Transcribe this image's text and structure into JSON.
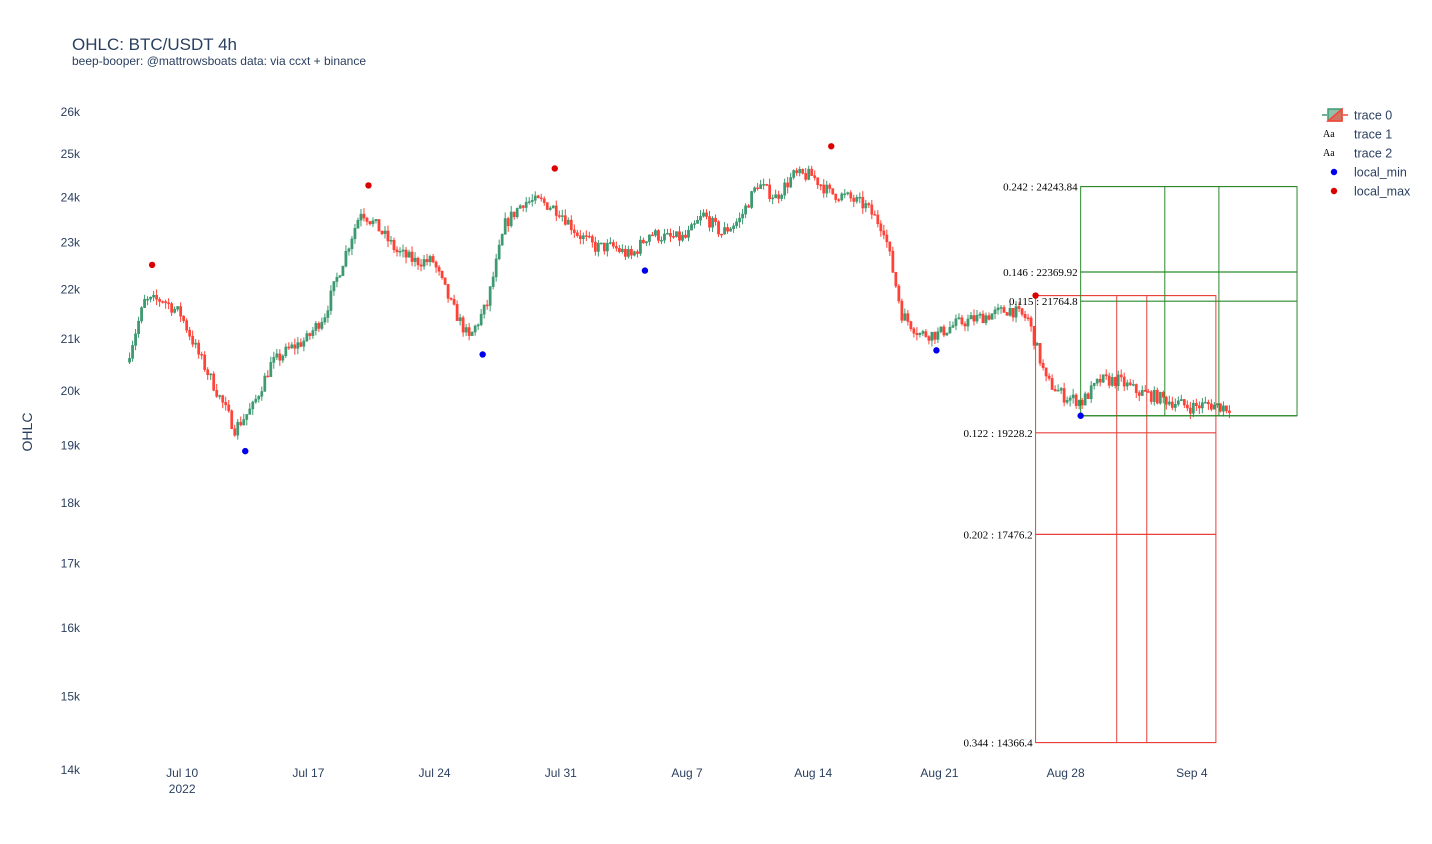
{
  "chart_data": {
    "type": "candlestick",
    "title": "OHLC: BTC/USDT 4h",
    "subtitle": "beep-booper: @mattrowsboats data: via ccxt + binance",
    "ylabel": "OHLC",
    "y_scale": "log",
    "ylim": [
      14000,
      26500
    ],
    "x_range": [
      "2022-07-05",
      "2022-09-09"
    ],
    "y_ticks": [
      {
        "v": 14000,
        "label": "14k"
      },
      {
        "v": 15000,
        "label": "15k"
      },
      {
        "v": 16000,
        "label": "16k"
      },
      {
        "v": 17000,
        "label": "17k"
      },
      {
        "v": 18000,
        "label": "18k"
      },
      {
        "v": 19000,
        "label": "19k"
      },
      {
        "v": 20000,
        "label": "20k"
      },
      {
        "v": 21000,
        "label": "21k"
      },
      {
        "v": 22000,
        "label": "22k"
      },
      {
        "v": 23000,
        "label": "23k"
      },
      {
        "v": 24000,
        "label": "24k"
      },
      {
        "v": 25000,
        "label": "25k"
      },
      {
        "v": 26000,
        "label": "26k"
      }
    ],
    "x_ticks": [
      {
        "date": "2022-07-10",
        "label": "Jul 10",
        "sub": "2022"
      },
      {
        "date": "2022-07-17",
        "label": "Jul 17",
        "sub": ""
      },
      {
        "date": "2022-07-24",
        "label": "Jul 24",
        "sub": ""
      },
      {
        "date": "2022-07-31",
        "label": "Jul 31",
        "sub": ""
      },
      {
        "date": "2022-08-07",
        "label": "Aug 7",
        "sub": ""
      },
      {
        "date": "2022-08-14",
        "label": "Aug 14",
        "sub": ""
      },
      {
        "date": "2022-08-21",
        "label": "Aug 21",
        "sub": ""
      },
      {
        "date": "2022-08-28",
        "label": "Aug 28",
        "sub": ""
      },
      {
        "date": "2022-09-04",
        "label": "Sep 4",
        "sub": ""
      }
    ],
    "price_path": [
      [
        "2022-07-07",
        20550
      ],
      [
        "2022-07-08",
        21750
      ],
      [
        "2022-07-09",
        21800
      ],
      [
        "2022-07-10",
        21500
      ],
      [
        "2022-07-11",
        20700
      ],
      [
        "2022-07-12",
        20000
      ],
      [
        "2022-07-13",
        19300
      ],
      [
        "2022-07-14",
        19700
      ],
      [
        "2022-07-15",
        20500
      ],
      [
        "2022-07-16",
        20800
      ],
      [
        "2022-07-17",
        21000
      ],
      [
        "2022-07-18",
        21500
      ],
      [
        "2022-07-19",
        22600
      ],
      [
        "2022-07-20",
        23700
      ],
      [
        "2022-07-21",
        23300
      ],
      [
        "2022-07-22",
        22800
      ],
      [
        "2022-07-23",
        22600
      ],
      [
        "2022-07-24",
        22600
      ],
      [
        "2022-07-25",
        21700
      ],
      [
        "2022-07-26",
        21000
      ],
      [
        "2022-07-27",
        21700
      ],
      [
        "2022-07-28",
        23400
      ],
      [
        "2022-07-29",
        23900
      ],
      [
        "2022-07-30",
        23900
      ],
      [
        "2022-07-31",
        23700
      ],
      [
        "2022-08-01",
        23200
      ],
      [
        "2022-08-02",
        22900
      ],
      [
        "2022-08-03",
        22900
      ],
      [
        "2022-08-04",
        22700
      ],
      [
        "2022-08-05",
        23200
      ],
      [
        "2022-08-06",
        23100
      ],
      [
        "2022-08-07",
        23100
      ],
      [
        "2022-08-08",
        23600
      ],
      [
        "2022-08-09",
        23200
      ],
      [
        "2022-08-10",
        23500
      ],
      [
        "2022-08-11",
        24300
      ],
      [
        "2022-08-12",
        24000
      ],
      [
        "2022-08-13",
        24500
      ],
      [
        "2022-08-14",
        24500
      ],
      [
        "2022-08-15",
        24100
      ],
      [
        "2022-08-16",
        24000
      ],
      [
        "2022-08-17",
        23800
      ],
      [
        "2022-08-18",
        23300
      ],
      [
        "2022-08-19",
        21500
      ],
      [
        "2022-08-20",
        21100
      ],
      [
        "2022-08-21",
        21100
      ],
      [
        "2022-08-22",
        21300
      ],
      [
        "2022-08-23",
        21400
      ],
      [
        "2022-08-24",
        21500
      ],
      [
        "2022-08-25",
        21600
      ],
      [
        "2022-08-26",
        21400
      ],
      [
        "2022-08-27",
        20200
      ],
      [
        "2022-08-28",
        19900
      ],
      [
        "2022-08-29",
        19800
      ],
      [
        "2022-08-30",
        20200
      ],
      [
        "2022-08-31",
        20200
      ],
      [
        "2022-09-01",
        20000
      ],
      [
        "2022-09-02",
        19900
      ],
      [
        "2022-09-03",
        19800
      ],
      [
        "2022-09-04",
        19700
      ],
      [
        "2022-09-05",
        19750
      ],
      [
        "2022-09-06",
        19700
      ]
    ],
    "local_min": [
      [
        "2022-07-13 12:00",
        18900
      ],
      [
        "2022-07-26 16:00",
        20700
      ],
      [
        "2022-08-04 16:00",
        22400
      ],
      [
        "2022-08-20 20:00",
        20780
      ],
      [
        "2022-08-28 20:00",
        19540
      ]
    ],
    "local_max": [
      [
        "2022-07-08 08:00",
        22520
      ],
      [
        "2022-07-20 08:00",
        24270
      ],
      [
        "2022-07-30 16:00",
        24660
      ],
      [
        "2022-08-15 00:00",
        25180
      ],
      [
        "2022-08-26 08:00",
        21880
      ]
    ],
    "fib_red": {
      "x0": "2022-08-26 08:00",
      "x1": "2022-09-05 08:00",
      "v1": "2022-08-30 20:00",
      "v2": "2022-09-01 12:00",
      "levels": [
        {
          "y": 21880,
          "label": ""
        },
        {
          "y": 19228.2,
          "label": "0.122 : 19228.2"
        },
        {
          "y": 17476.2,
          "label": "0.202 : 17476.2"
        },
        {
          "y": 14366.4,
          "label": "0.344 : 14366.4"
        }
      ]
    },
    "fib_green": {
      "x0": "2022-08-28 20:00",
      "x1": "2022-09-09 20:00",
      "v1": "2022-09-02 12:00",
      "v2": "2022-09-05 12:00",
      "levels": [
        {
          "y": 24243.84,
          "label": "0.242 : 24243.84"
        },
        {
          "y": 22369.92,
          "label": "0.146 : 22369.92"
        },
        {
          "y": 21764.8,
          "label": "0.115 : 21764.8"
        },
        {
          "y": 19540,
          "label": ""
        }
      ]
    },
    "legend": [
      {
        "name": "trace 0",
        "kind": "candle"
      },
      {
        "name": "trace 1",
        "kind": "text"
      },
      {
        "name": "trace 2",
        "kind": "text"
      },
      {
        "name": "local_min",
        "kind": "min"
      },
      {
        "name": "local_max",
        "kind": "max"
      }
    ],
    "legend_placement": "top-right",
    "legend_text_icon": "Aa",
    "colors": {
      "increasing": "#3d9970",
      "decreasing": "#ff4136",
      "local_min": "#0000ee",
      "local_max": "#dd0000",
      "fib_red": "#e8413c",
      "fib_green": "#2c8a2c"
    }
  }
}
